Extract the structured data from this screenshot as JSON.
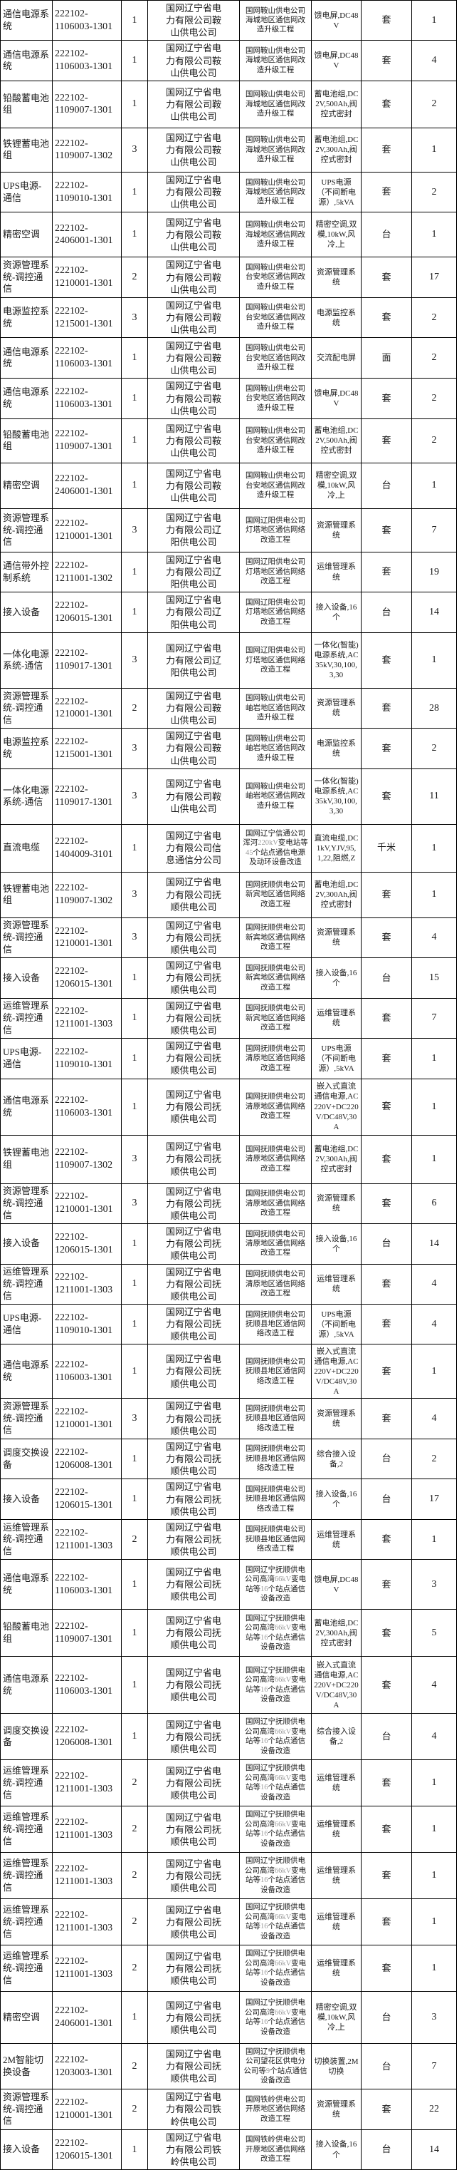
{
  "colors": {
    "background": "#ffffff",
    "border": "#000000",
    "text": "#1a1a1a",
    "latin_dim": "#9b9b9b"
  },
  "table": {
    "rows": [
      {
        "material": "通信电源系统",
        "code": "222102-1106003-1301",
        "lot": "1",
        "purchaser": "国网辽宁省电力有限公司鞍山供电公司",
        "project": "国网鞍山供电公司海城地区通信网改造升级工程",
        "description": "馈电屏,DC48V",
        "unit": "套",
        "quantity": "1"
      },
      {
        "material": "通信电源系统",
        "code": "222102-1106003-1301",
        "lot": "1",
        "purchaser": "国网辽宁省电力有限公司鞍山供电公司",
        "project": "国网鞍山供电公司海城地区通信网改造升级工程",
        "description": "馈电屏,DC48V",
        "unit": "套",
        "quantity": "4"
      },
      {
        "material": "铅酸蓄电池组",
        "code": "222102-1109007-1301",
        "lot": "1",
        "purchaser": "国网辽宁省电力有限公司鞍山供电公司",
        "project": "国网鞍山供电公司海城地区通信网改造升级工程",
        "description": "蓄电池组,DC2V,500Ah,阀控式密封",
        "unit": "套",
        "quantity": "2"
      },
      {
        "material": "铁锂蓄电池组",
        "code": "222102-1109007-1302",
        "lot": "3",
        "purchaser": "国网辽宁省电力有限公司鞍山供电公司",
        "project": "国网鞍山供电公司海城地区通信网改造升级工程",
        "description": "蓄电池组,DC2V,300Ah,阀控式密封",
        "unit": "套",
        "quantity": "1"
      },
      {
        "material": "UPS电源-通信",
        "code": "222102-1109010-1301",
        "lot": "1",
        "purchaser": "国网辽宁省电力有限公司鞍山供电公司",
        "project": "国网鞍山供电公司海城地区通信网改造升级工程",
        "description": "UPS电源（不间断电源）,5kVA",
        "unit": "套",
        "quantity": "2"
      },
      {
        "material": "精密空调",
        "code": "222102-2406001-1301",
        "lot": "1",
        "purchaser": "国网辽宁省电力有限公司鞍山供电公司",
        "project": "国网鞍山供电公司海城地区通信网改造升级工程",
        "description": "精密空调,双模,10kW,风冷,上",
        "unit": "台",
        "quantity": "1"
      },
      {
        "material": "资源管理系统-调控通信",
        "code": "222102-1210001-1301",
        "lot": "2",
        "purchaser": "国网辽宁省电力有限公司鞍山供电公司",
        "project": "国网鞍山供电公司台安地区通信网改造升级工程",
        "description": "资源管理系统",
        "unit": "套",
        "quantity": "17"
      },
      {
        "material": "电源监控系统",
        "code": "222102-1215001-1301",
        "lot": "3",
        "purchaser": "国网辽宁省电力有限公司鞍山供电公司",
        "project": "国网鞍山供电公司台安地区通信网改造升级工程",
        "description": "电源监控系统",
        "unit": "套",
        "quantity": "2"
      },
      {
        "material": "通信电源系统",
        "code": "222102-1106003-1301",
        "lot": "1",
        "purchaser": "国网辽宁省电力有限公司鞍山供电公司",
        "project": "国网鞍山供电公司台安地区通信网改造升级工程",
        "description": "交流配电屏",
        "unit": "面",
        "quantity": "2"
      },
      {
        "material": "通信电源系统",
        "code": "222102-1106003-1301",
        "lot": "1",
        "purchaser": "国网辽宁省电力有限公司鞍山供电公司",
        "project": "国网鞍山供电公司台安地区通信网改造升级工程",
        "description": "馈电屏,DC48V",
        "unit": "套",
        "quantity": "2"
      },
      {
        "material": "铅酸蓄电池组",
        "code": "222102-1109007-1301",
        "lot": "1",
        "purchaser": "国网辽宁省电力有限公司鞍山供电公司",
        "project": "国网鞍山供电公司台安地区通信网改造升级工程",
        "description": "蓄电池组,DC2V,500Ah,阀控式密封",
        "unit": "套",
        "quantity": "2"
      },
      {
        "material": "精密空调",
        "code": "222102-2406001-1301",
        "lot": "1",
        "purchaser": "国网辽宁省电力有限公司鞍山供电公司",
        "project": "国网鞍山供电公司台安地区通信网改造升级工程",
        "description": "精密空调,双模,10kW,风冷,上",
        "unit": "台",
        "quantity": "1"
      },
      {
        "material": "资源管理系统-调控通信",
        "code": "222102-1210001-1301",
        "lot": "3",
        "purchaser": "国网辽宁省电力有限公司辽阳供电公司",
        "project": "国网辽阳供电公司灯塔地区通信网络改造工程",
        "description": "资源管理系统",
        "unit": "套",
        "quantity": "7"
      },
      {
        "material": "通信带外控制系统",
        "code": "222102-1211001-1302",
        "lot": "1",
        "purchaser": "国网辽宁省电力有限公司辽阳供电公司",
        "project": "国网辽阳供电公司灯塔地区通信网络改造工程",
        "description": "运维管理系统",
        "unit": "套",
        "quantity": "19"
      },
      {
        "material": "接入设备",
        "code": "222102-1206015-1301",
        "lot": "1",
        "purchaser": "国网辽宁省电力有限公司辽阳供电公司",
        "project": "国网辽阳供电公司灯塔地区通信网络改造工程",
        "description": "接入设备,16个",
        "unit": "台",
        "quantity": "14"
      },
      {
        "material": "一体化电源系统-通信",
        "code": "222102-1109017-1301",
        "lot": "3",
        "purchaser": "国网辽宁省电力有限公司辽阳供电公司",
        "project": "国网辽阳供电公司灯塔地区通信网络改造工程",
        "description": "一体化(智能)电源系统,AC35kV,30,100,3,30",
        "unit": "套",
        "quantity": "1"
      },
      {
        "material": "资源管理系统-调控通信",
        "code": "222102-1210001-1301",
        "lot": "2",
        "purchaser": "国网辽宁省电力有限公司鞍山供电公司",
        "project": "国网鞍山供电公司岫岩地区通信网改造升级工程",
        "description": "资源管理系统",
        "unit": "套",
        "quantity": "28"
      },
      {
        "material": "电源监控系统",
        "code": "222102-1215001-1301",
        "lot": "3",
        "purchaser": "国网辽宁省电力有限公司鞍山供电公司",
        "project": "国网鞍山供电公司岫岩地区通信网改造升级工程",
        "description": "电源监控系统",
        "unit": "套",
        "quantity": "2"
      },
      {
        "material": "一体化电源系统-通信",
        "code": "222102-1109017-1301",
        "lot": "3",
        "purchaser": "国网辽宁省电力有限公司鞍山供电公司",
        "project": "国网鞍山供电公司岫岩地区通信网改造升级工程",
        "description": "一体化(智能)电源系统,AC35kV,30,100,3,30",
        "unit": "套",
        "quantity": "11"
      },
      {
        "material": "直流电缆",
        "code": "222102-1404009-3101",
        "lot": "1",
        "purchaser": "国网辽宁省电力有限公司信息通信分公司",
        "project": "国网辽宁信通公司浑河220kV变电站等45个站点通信电源及动环设备改造",
        "description": "直流电缆,DC1kV,YJV,95,1,22,阻燃,Z",
        "unit": "千米",
        "quantity": "1"
      },
      {
        "material": "铁锂蓄电池组",
        "code": "222102-1109007-1302",
        "lot": "3",
        "purchaser": "国网辽宁省电力有限公司抚顺供电公司",
        "project": "国网抚顺供电公司新宾地区通信网络改造工程",
        "description": "蓄电池组,DC2V,300Ah,阀控式密封",
        "unit": "套",
        "quantity": "1"
      },
      {
        "material": "资源管理系统-调控通信",
        "code": "222102-1210001-1301",
        "lot": "3",
        "purchaser": "国网辽宁省电力有限公司抚顺供电公司",
        "project": "国网抚顺供电公司新宾地区通信网络改造工程",
        "description": "资源管理系统",
        "unit": "套",
        "quantity": "4"
      },
      {
        "material": "接入设备",
        "code": "222102-1206015-1301",
        "lot": "1",
        "purchaser": "国网辽宁省电力有限公司抚顺供电公司",
        "project": "国网抚顺供电公司新宾地区通信网络改造工程",
        "description": "接入设备,16个",
        "unit": "台",
        "quantity": "15"
      },
      {
        "material": "运维管理系统-调控通信",
        "code": "222102-1211001-1303",
        "lot": "1",
        "purchaser": "国网辽宁省电力有限公司抚顺供电公司",
        "project": "国网抚顺供电公司新宾地区通信网络改造工程",
        "description": "运维管理系统",
        "unit": "套",
        "quantity": "7"
      },
      {
        "material": "UPS电源-通信",
        "code": "222102-1109010-1301",
        "lot": "1",
        "purchaser": "国网辽宁省电力有限公司抚顺供电公司",
        "project": "国网抚顺供电公司清原地区通信网络改造工程",
        "description": "UPS电源（不间断电源）,5kVA",
        "unit": "套",
        "quantity": "1"
      },
      {
        "material": "通信电源系统",
        "code": "222102-1106003-1301",
        "lot": "1",
        "purchaser": "国网辽宁省电力有限公司抚顺供电公司",
        "project": "国网抚顺供电公司清原地区通信网络改造工程",
        "description": "嵌入式直流通信电源,AC220V+DC220V/DC48V,30A",
        "unit": "套",
        "quantity": "1"
      },
      {
        "material": "铁锂蓄电池组",
        "code": "222102-1109007-1302",
        "lot": "3",
        "purchaser": "国网辽宁省电力有限公司抚顺供电公司",
        "project": "国网抚顺供电公司清原地区通信网络改造工程",
        "description": "蓄电池组,DC2V,300Ah,阀控式密封",
        "unit": "套",
        "quantity": "1"
      },
      {
        "material": "资源管理系统-调控通信",
        "code": "222102-1210001-1301",
        "lot": "3",
        "purchaser": "国网辽宁省电力有限公司抚顺供电公司",
        "project": "国网抚顺供电公司清原地区通信网络改造工程",
        "description": "资源管理系统",
        "unit": "套",
        "quantity": "6"
      },
      {
        "material": "接入设备",
        "code": "222102-1206015-1301",
        "lot": "1",
        "purchaser": "国网辽宁省电力有限公司抚顺供电公司",
        "project": "国网抚顺供电公司清原地区通信网络改造工程",
        "description": "接入设备,16个",
        "unit": "台",
        "quantity": "14"
      },
      {
        "material": "运维管理系统-调控通信",
        "code": "222102-1211001-1303",
        "lot": "1",
        "purchaser": "国网辽宁省电力有限公司抚顺供电公司",
        "project": "国网抚顺供电公司清原地区通信网络改造工程",
        "description": "运维管理系统",
        "unit": "套",
        "quantity": "4"
      },
      {
        "material": "UPS电源-通信",
        "code": "222102-1109010-1301",
        "lot": "1",
        "purchaser": "国网辽宁省电力有限公司抚顺供电公司",
        "project": "国网抚顺供电公司抚顺县地区通信网络改造工程",
        "description": "UPS电源（不间断电源）,5kVA",
        "unit": "套",
        "quantity": "4"
      },
      {
        "material": "通信电源系统",
        "code": "222102-1106003-1301",
        "lot": "1",
        "purchaser": "国网辽宁省电力有限公司抚顺供电公司",
        "project": "国网抚顺供电公司抚顺县地区通信网络改造工程",
        "description": "嵌入式直流通信电源,AC220V+DC220V/DC48V,30A",
        "unit": "套",
        "quantity": "1"
      },
      {
        "material": "资源管理系统-调控通信",
        "code": "222102-1210001-1301",
        "lot": "3",
        "purchaser": "国网辽宁省电力有限公司抚顺供电公司",
        "project": "国网抚顺供电公司抚顺县地区通信网络改造工程",
        "description": "资源管理系统",
        "unit": "套",
        "quantity": "4"
      },
      {
        "material": "调度交换设备",
        "code": "222102-1206008-1301",
        "lot": "1",
        "purchaser": "国网辽宁省电力有限公司抚顺供电公司",
        "project": "国网抚顺供电公司抚顺县地区通信网络改造工程",
        "description": "综合接入设备,2",
        "unit": "台",
        "quantity": "2"
      },
      {
        "material": "接入设备",
        "code": "222102-1206015-1301",
        "lot": "1",
        "purchaser": "国网辽宁省电力有限公司抚顺供电公司",
        "project": "国网抚顺供电公司抚顺县地区通信网络改造工程",
        "description": "接入设备,16个",
        "unit": "台",
        "quantity": "17"
      },
      {
        "material": "运维管理系统-调控通信",
        "code": "222102-1211001-1303",
        "lot": "2",
        "purchaser": "国网辽宁省电力有限公司抚顺供电公司",
        "project": "国网抚顺供电公司抚顺县地区通信网络改造工程",
        "description": "运维管理系统",
        "unit": "套",
        "quantity": "1"
      },
      {
        "material": "通信电源系统",
        "code": "222102-1106003-1301",
        "lot": "1",
        "purchaser": "国网辽宁省电力有限公司抚顺供电公司",
        "project": "国网辽宁抚顺供电公司高湾66kV变电站等16个站点通信设备改造",
        "description": "馈电屏,DC48V",
        "unit": "套",
        "quantity": "3"
      },
      {
        "material": "铅酸蓄电池组",
        "code": "222102-1109007-1301",
        "lot": "1",
        "purchaser": "国网辽宁省电力有限公司抚顺供电公司",
        "project": "国网辽宁抚顺供电公司高湾66kV变电站等16个站点通信设备改造",
        "description": "蓄电池组,DC2V,300Ah,阀控式密封",
        "unit": "套",
        "quantity": "5"
      },
      {
        "material": "通信电源系统",
        "code": "222102-1106003-1301",
        "lot": "1",
        "purchaser": "国网辽宁省电力有限公司抚顺供电公司",
        "project": "国网辽宁抚顺供电公司高湾66kV变电站等16个站点通信设备改造",
        "description": "嵌入式直流通信电源,AC220V+DC220V/DC48V,30A",
        "unit": "套",
        "quantity": "4"
      },
      {
        "material": "调度交换设备",
        "code": "222102-1206008-1301",
        "lot": "1",
        "purchaser": "国网辽宁省电力有限公司抚顺供电公司",
        "project": "国网辽宁抚顺供电公司高湾66kV变电站等16个站点通信设备改造",
        "description": "综合接入设备,2",
        "unit": "台",
        "quantity": "4"
      },
      {
        "material": "运维管理系统-调控通信",
        "code": "222102-1211001-1303",
        "lot": "2",
        "purchaser": "国网辽宁省电力有限公司抚顺供电公司",
        "project": "国网辽宁抚顺供电公司高湾66kV变电站等16个站点通信设备改造",
        "description": "运维管理系统",
        "unit": "套",
        "quantity": "1"
      },
      {
        "material": "运维管理系统-调控通信",
        "code": "222102-1211001-1303",
        "lot": "2",
        "purchaser": "国网辽宁省电力有限公司抚顺供电公司",
        "project": "国网辽宁抚顺供电公司高湾66kV变电站等16个站点通信设备改造",
        "description": "运维管理系统",
        "unit": "套",
        "quantity": "1"
      },
      {
        "material": "运维管理系统-调控通信",
        "code": "222102-1211001-1303",
        "lot": "2",
        "purchaser": "国网辽宁省电力有限公司抚顺供电公司",
        "project": "国网辽宁抚顺供电公司高湾66kV变电站等16个站点通信设备改造",
        "description": "运维管理系统",
        "unit": "套",
        "quantity": "1"
      },
      {
        "material": "运维管理系统-调控通信",
        "code": "222102-1211001-1303",
        "lot": "2",
        "purchaser": "国网辽宁省电力有限公司抚顺供电公司",
        "project": "国网辽宁抚顺供电公司高湾66kV变电站等16个站点通信设备改造",
        "description": "运维管理系统",
        "unit": "套",
        "quantity": "1"
      },
      {
        "material": "运维管理系统-调控通信",
        "code": "222102-1211001-1303",
        "lot": "2",
        "purchaser": "国网辽宁省电力有限公司抚顺供电公司",
        "project": "国网辽宁抚顺供电公司高湾66kV变电站等16个站点通信设备改造",
        "description": "运维管理系统",
        "unit": "套",
        "quantity": "1"
      },
      {
        "material": "精密空调",
        "code": "222102-2406001-1301",
        "lot": "1",
        "purchaser": "国网辽宁省电力有限公司抚顺供电公司",
        "project": "国网辽宁抚顺供电公司高湾66kV变电站等16个站点通信设备改造",
        "description": "精密空调,双模,10kW,风冷,上",
        "unit": "台",
        "quantity": "3"
      },
      {
        "material": "2M智能切换设备",
        "code": "222102-1203003-1301",
        "lot": "2",
        "purchaser": "国网辽宁省电力有限公司抚顺供电公司",
        "project": "国网辽宁抚顺供电公司望花区供电分公司等9个站点通信设备改造",
        "description": "切换装置,2M切换",
        "unit": "台",
        "quantity": "7"
      },
      {
        "material": "资源管理系统-调控通信",
        "code": "222102-1210001-1301",
        "lot": "2",
        "purchaser": "国网辽宁省电力有限公司铁岭供电公司",
        "project": "国网铁岭供电公司开原地区通信网络改造工程",
        "description": "资源管理系统",
        "unit": "套",
        "quantity": "22"
      },
      {
        "material": "接入设备",
        "code": "222102-1206015-1301",
        "lot": "1",
        "purchaser": "国网辽宁省电力有限公司铁岭供电公司",
        "project": "国网铁岭供电公司开原地区通信网络改造工程",
        "description": "接入设备,16个",
        "unit": "台",
        "quantity": "14"
      }
    ]
  }
}
